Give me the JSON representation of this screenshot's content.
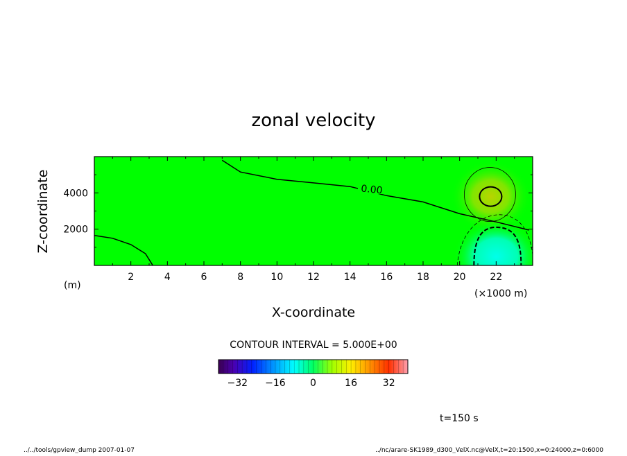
{
  "chart_data": {
    "type": "heatmap",
    "title": "zonal velocity",
    "xlabel": "X-coordinate",
    "ylabel": "Z-coordinate",
    "x_unit_label": "(×1000 m)",
    "y_unit_label": "(m)",
    "xlim": [
      0,
      24
    ],
    "ylim": [
      0,
      6000
    ],
    "x_ticks": [
      "2",
      "4",
      "6",
      "8",
      "10",
      "12",
      "14",
      "16",
      "18",
      "20",
      "22"
    ],
    "y_ticks": [
      "2000",
      "4000"
    ],
    "contour_label": "0.00",
    "contour_interval_text": "CONTOUR INTERVAL = 5.000E+00",
    "colorbar": {
      "range": [
        -40,
        40
      ],
      "ticks": [
        "−32",
        "−16",
        "0",
        "16",
        "32"
      ]
    },
    "zero_contour": {
      "x": [
        7.0,
        8.0,
        10.0,
        12.0,
        14.0,
        16.0,
        18.0,
        20.0,
        22.0,
        23.8
      ],
      "z": [
        5800,
        5150,
        4750,
        4550,
        4350,
        3850,
        3500,
        2850,
        2400,
        1950
      ]
    },
    "zero_contour_lower_left": {
      "x": [
        0.0,
        1.0,
        2.0,
        2.8,
        3.2
      ],
      "z": [
        1650,
        1500,
        1150,
        650,
        0
      ]
    },
    "positive_center": {
      "x": 21.7,
      "z": 3800
    },
    "negative_center": {
      "x": 22.0,
      "z": 800
    },
    "time_label": "t=150 s"
  },
  "footer": {
    "left": "../../tools/gpview_dump  2007-01-07",
    "right": "../nc/arare-SK1989_d300_VelX.nc@VelX,t=20:1500,x=0:24000,z=0:6000"
  }
}
